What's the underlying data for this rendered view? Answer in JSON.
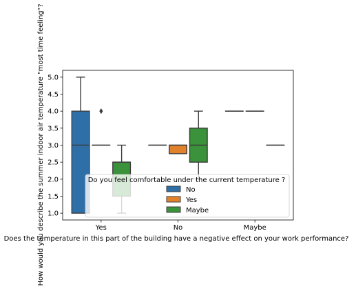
{
  "chart_data": {
    "type": "box",
    "xlabel": "Does the temperature in this part of the building have a negative effect on your work performance?",
    "ylabel": "How would you describe the summer indoor air temperature \"most time feeling\"?",
    "categories": [
      "Yes",
      "No",
      "Maybe"
    ],
    "ylim": [
      0.8,
      5.2
    ],
    "yticks": [
      "1.0",
      "1.5",
      "2.0",
      "2.5",
      "3.0",
      "3.5",
      "4.0",
      "4.5",
      "5.0"
    ],
    "grid": false,
    "legend": {
      "title": "Do you feel comfortable under the current temperature ?",
      "placement": "lower-right",
      "entries": [
        "No",
        "Yes",
        "Maybe"
      ]
    },
    "series": [
      {
        "name": "No",
        "color": "#2f6fa7",
        "boxes": [
          {
            "category": "Yes",
            "whisker_low": 1.0,
            "q1": 1.0,
            "median": 3.0,
            "q3": 4.0,
            "whisker_high": 5.0,
            "outliers": []
          },
          {
            "category": "No",
            "whisker_low": 3.0,
            "q1": 3.0,
            "median": 3.0,
            "q3": 3.0,
            "whisker_high": 3.0,
            "outliers": []
          },
          {
            "category": "Maybe",
            "whisker_low": 4.0,
            "q1": 4.0,
            "median": 4.0,
            "q3": 4.0,
            "whisker_high": 4.0,
            "outliers": []
          }
        ]
      },
      {
        "name": "Yes",
        "color": "#e1812c",
        "boxes": [
          {
            "category": "Yes",
            "whisker_low": 3.0,
            "q1": 3.0,
            "median": 3.0,
            "q3": 3.0,
            "whisker_high": 3.0,
            "outliers": [
              4.0
            ]
          },
          {
            "category": "No",
            "whisker_low": 2.75,
            "q1": 2.75,
            "median": 3.0,
            "q3": 3.0,
            "whisker_high": 3.0,
            "outliers": []
          },
          {
            "category": "Maybe",
            "whisker_low": 4.0,
            "q1": 4.0,
            "median": 4.0,
            "q3": 4.0,
            "whisker_high": 4.0,
            "outliers": []
          }
        ]
      },
      {
        "name": "Maybe",
        "color": "#3a923a",
        "boxes": [
          {
            "category": "Yes",
            "whisker_low": 1.0,
            "q1": 1.5,
            "median": 2.5,
            "q3": 2.5,
            "whisker_high": 3.0,
            "outliers": []
          },
          {
            "category": "No",
            "whisker_low": 2.0,
            "q1": 2.5,
            "median": 3.0,
            "q3": 3.5,
            "whisker_high": 4.0,
            "outliers": []
          },
          {
            "category": "Maybe",
            "whisker_low": 3.0,
            "q1": 3.0,
            "median": 3.0,
            "q3": 3.0,
            "whisker_high": 3.0,
            "outliers": []
          }
        ]
      }
    ]
  }
}
